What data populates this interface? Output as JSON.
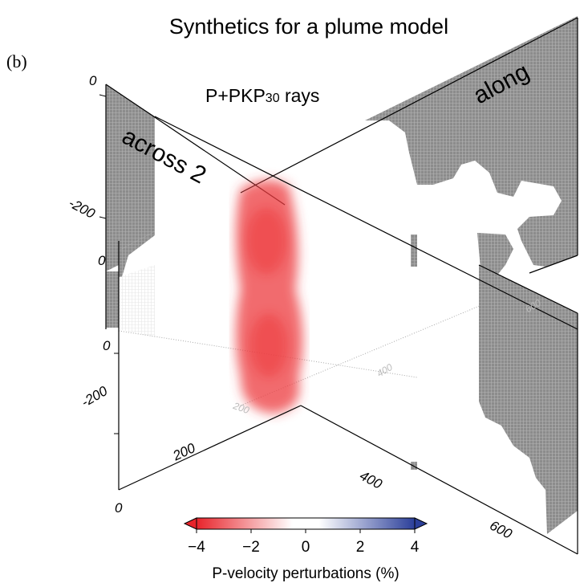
{
  "title": "Synthetics for a plume model",
  "panel_label": "(b)",
  "subtitle": {
    "main": "P+PKP",
    "sub": "30",
    "tail": " rays"
  },
  "section_labels": {
    "across": "across 2",
    "along": "along"
  },
  "tick_labels": {
    "back_0": "0",
    "back_m200": "-200",
    "mid_0": "0",
    "front_0": "0",
    "front_m200": "-200",
    "bottom_0": "0",
    "bottom_200": "200",
    "bottom_400": "400",
    "bottom_600": "600",
    "faint_200": "200",
    "faint_400": "400",
    "faint_600": "600"
  },
  "colorbar": {
    "ticks": [
      "−4",
      "−2",
      "0",
      "2",
      "4"
    ],
    "label": "P-velocity perturbations (%)",
    "min": -4,
    "max": 4,
    "colors": {
      "negative": "#e8242b",
      "positive": "#2b3f9a",
      "neutral": "#ffffff"
    }
  },
  "colors": {
    "section_fill": "#8c8c8c",
    "anomaly": "#ec3a3f"
  }
}
